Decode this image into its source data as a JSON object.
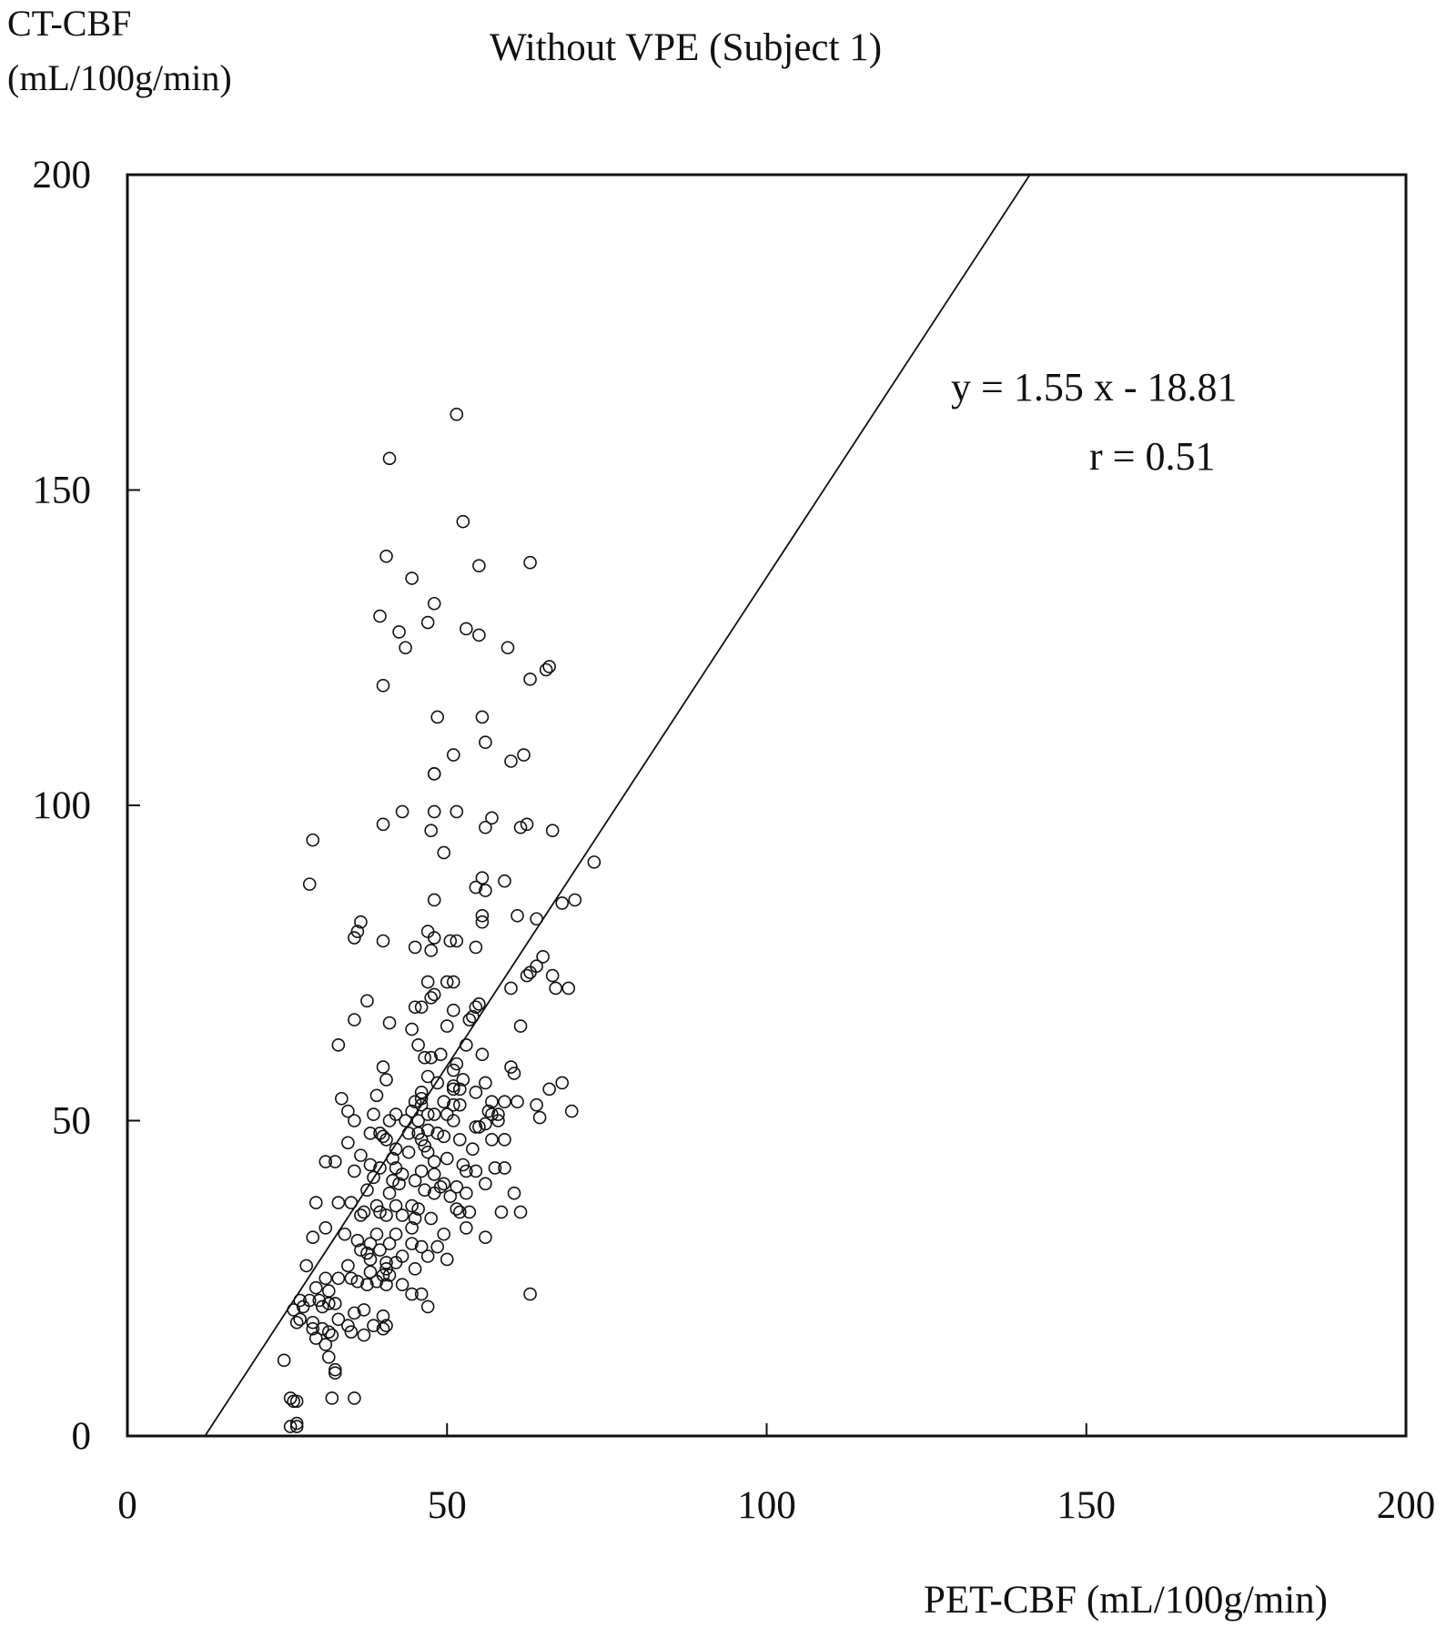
{
  "chart_data": {
    "type": "scatter",
    "title": "Without VPE (Subject 1)",
    "ylabel_line1": "CT-CBF",
    "ylabel_line2": "(mL/100g/min)",
    "xlabel": "PET-CBF (mL/100g/min)",
    "xlim": [
      0,
      200
    ],
    "ylim": [
      0,
      200
    ],
    "xticks": [
      0,
      50,
      100,
      150,
      200
    ],
    "yticks": [
      0,
      50,
      100,
      150,
      200
    ],
    "grid": false,
    "regression": {
      "slope": 1.55,
      "intercept": -18.81
    },
    "annotations": [
      "y = 1.55 x - 18.81",
      "r = 0.51"
    ],
    "points": [
      [
        51.5,
        162
      ],
      [
        41,
        155
      ],
      [
        52.5,
        145
      ],
      [
        40.5,
        139.5
      ],
      [
        63,
        138.5
      ],
      [
        55,
        138
      ],
      [
        44.5,
        136
      ],
      [
        48,
        132
      ],
      [
        39.5,
        130
      ],
      [
        47,
        129
      ],
      [
        53,
        128
      ],
      [
        42.5,
        127.5
      ],
      [
        55,
        127
      ],
      [
        43.5,
        125
      ],
      [
        59.5,
        125
      ],
      [
        66,
        122
      ],
      [
        65.5,
        121.5
      ],
      [
        63,
        120
      ],
      [
        40,
        119
      ],
      [
        48.5,
        114
      ],
      [
        55.5,
        114
      ],
      [
        56,
        110
      ],
      [
        62,
        108
      ],
      [
        51,
        108
      ],
      [
        60,
        107
      ],
      [
        48,
        105
      ],
      [
        48,
        105
      ],
      [
        57,
        98
      ],
      [
        40,
        97
      ],
      [
        43,
        99
      ],
      [
        48,
        99
      ],
      [
        51.5,
        99
      ],
      [
        62.5,
        97
      ],
      [
        61.5,
        96.5
      ],
      [
        56,
        96.5
      ],
      [
        66.5,
        96
      ],
      [
        47.5,
        96
      ],
      [
        29,
        94.5
      ],
      [
        49.5,
        92.5
      ],
      [
        73,
        91
      ],
      [
        55.5,
        88.5
      ],
      [
        59,
        88
      ],
      [
        28.5,
        87.5
      ],
      [
        54.5,
        87
      ],
      [
        56,
        86.5
      ],
      [
        70,
        85
      ],
      [
        68,
        84.5
      ],
      [
        48,
        85
      ],
      [
        55.5,
        82.5
      ],
      [
        55.5,
        81.5
      ],
      [
        61,
        82.5
      ],
      [
        64,
        82
      ],
      [
        36.5,
        81.5
      ],
      [
        36,
        80
      ],
      [
        47,
        80
      ],
      [
        35.5,
        79
      ],
      [
        48,
        79
      ],
      [
        40,
        78.5
      ],
      [
        50.5,
        78.5
      ],
      [
        51.5,
        78.5
      ],
      [
        54.5,
        77.5
      ],
      [
        45,
        77.5
      ],
      [
        47.5,
        77
      ],
      [
        65,
        76
      ],
      [
        64,
        74.5
      ],
      [
        63,
        73.5
      ],
      [
        62.5,
        73
      ],
      [
        66.5,
        73
      ],
      [
        47,
        72
      ],
      [
        50,
        72
      ],
      [
        51,
        72
      ],
      [
        60,
        71
      ],
      [
        67,
        71
      ],
      [
        69,
        71
      ],
      [
        48,
        70
      ],
      [
        47.5,
        69.5
      ],
      [
        37.5,
        69
      ],
      [
        55,
        68.5
      ],
      [
        54.5,
        68
      ],
      [
        46,
        68
      ],
      [
        45,
        68
      ],
      [
        51,
        67.5
      ],
      [
        54,
        66.5
      ],
      [
        53.5,
        66
      ],
      [
        35.5,
        66
      ],
      [
        41,
        65.5
      ],
      [
        61.5,
        65
      ],
      [
        50,
        65
      ],
      [
        44.5,
        64.5
      ],
      [
        33,
        62
      ],
      [
        45.5,
        62
      ],
      [
        53,
        62
      ],
      [
        49,
        60.5
      ],
      [
        46.5,
        60
      ],
      [
        47.5,
        60
      ],
      [
        55.5,
        60.5
      ],
      [
        51.5,
        59
      ],
      [
        40,
        58.5
      ],
      [
        60,
        58.5
      ],
      [
        60.5,
        57.5
      ],
      [
        51,
        58
      ],
      [
        47,
        57
      ],
      [
        52.5,
        56.5
      ],
      [
        40.5,
        56.5
      ],
      [
        68,
        56
      ],
      [
        48.5,
        56
      ],
      [
        51,
        55.5
      ],
      [
        51,
        55
      ],
      [
        56,
        56
      ],
      [
        66,
        55
      ],
      [
        46,
        54.5
      ],
      [
        52,
        55
      ],
      [
        54.5,
        54.5
      ],
      [
        39,
        54
      ],
      [
        46,
        53.5
      ],
      [
        33.5,
        53.5
      ],
      [
        49.5,
        53
      ],
      [
        45,
        53
      ],
      [
        46,
        52.5
      ],
      [
        52,
        52.5
      ],
      [
        51,
        52.5
      ],
      [
        57,
        53
      ],
      [
        61,
        53
      ],
      [
        59,
        53
      ],
      [
        64,
        52.5
      ],
      [
        44.5,
        51.5
      ],
      [
        34.5,
        51.5
      ],
      [
        38.5,
        51
      ],
      [
        42,
        51
      ],
      [
        50,
        51
      ],
      [
        58,
        51
      ],
      [
        57,
        51
      ],
      [
        47,
        51
      ],
      [
        48,
        51
      ],
      [
        69.5,
        51.5
      ],
      [
        56.5,
        51.5
      ],
      [
        35.5,
        50
      ],
      [
        41,
        50
      ],
      [
        43.5,
        50
      ],
      [
        45.5,
        50
      ],
      [
        51,
        50
      ],
      [
        56,
        49.5
      ],
      [
        64.5,
        50.5
      ],
      [
        58,
        50
      ],
      [
        54.5,
        49
      ],
      [
        55,
        49
      ],
      [
        47,
        48.5
      ],
      [
        48.5,
        48
      ],
      [
        45.5,
        48
      ],
      [
        39.5,
        48
      ],
      [
        40,
        47.5
      ],
      [
        38,
        48
      ],
      [
        44,
        48
      ],
      [
        49.5,
        47.5
      ],
      [
        46,
        47
      ],
      [
        59,
        47
      ],
      [
        57,
        47
      ],
      [
        52,
        47
      ],
      [
        40.5,
        47
      ],
      [
        34.5,
        46.5
      ],
      [
        46.5,
        46
      ],
      [
        42,
        45.5
      ],
      [
        54,
        45.5
      ],
      [
        47,
        45
      ],
      [
        44,
        45
      ],
      [
        50,
        44
      ],
      [
        36.5,
        44.5
      ],
      [
        41.5,
        44
      ],
      [
        48,
        43.5
      ],
      [
        31,
        43.5
      ],
      [
        32.5,
        43.5
      ],
      [
        38,
        43
      ],
      [
        39.5,
        42.5
      ],
      [
        42,
        42.5
      ],
      [
        52.5,
        43
      ],
      [
        57.5,
        42.5
      ],
      [
        59,
        42.5
      ],
      [
        53,
        42
      ],
      [
        54.5,
        42
      ],
      [
        35.5,
        42
      ],
      [
        46,
        42
      ],
      [
        43,
        41.5
      ],
      [
        48,
        41.5
      ],
      [
        38.5,
        41
      ],
      [
        41.5,
        40.5
      ],
      [
        45,
        40.5
      ],
      [
        49.5,
        40
      ],
      [
        42.5,
        40
      ],
      [
        49,
        39.5
      ],
      [
        51.5,
        39.5
      ],
      [
        56,
        40
      ],
      [
        53,
        38.5
      ],
      [
        37.5,
        39
      ],
      [
        46.5,
        39
      ],
      [
        41,
        38.5
      ],
      [
        48,
        38.5
      ],
      [
        60.5,
        38.5
      ],
      [
        50.5,
        38
      ],
      [
        33,
        37
      ],
      [
        29.5,
        37
      ],
      [
        35,
        37
      ],
      [
        39,
        36.5
      ],
      [
        42,
        36.5
      ],
      [
        44.5,
        36.5
      ],
      [
        45.5,
        36
      ],
      [
        51.5,
        36
      ],
      [
        52,
        35.5
      ],
      [
        37,
        35.5
      ],
      [
        39.5,
        35.5
      ],
      [
        53.5,
        35.5
      ],
      [
        58.5,
        35.5
      ],
      [
        61.5,
        35.5
      ],
      [
        36.5,
        35
      ],
      [
        40.5,
        35
      ],
      [
        43,
        35
      ],
      [
        45,
        34.5
      ],
      [
        47.5,
        34.5
      ],
      [
        44.5,
        33
      ],
      [
        53,
        33
      ],
      [
        31,
        33
      ],
      [
        34,
        32
      ],
      [
        39,
        32
      ],
      [
        42,
        32
      ],
      [
        49.5,
        32
      ],
      [
        56,
        31.5
      ],
      [
        29,
        31.5
      ],
      [
        36,
        31
      ],
      [
        38,
        30.5
      ],
      [
        41,
        30.5
      ],
      [
        44.5,
        30.5
      ],
      [
        46,
        30
      ],
      [
        48.5,
        30
      ],
      [
        36.5,
        29.5
      ],
      [
        39.5,
        29.5
      ],
      [
        37.5,
        29
      ],
      [
        43,
        28.5
      ],
      [
        47,
        28.5
      ],
      [
        50,
        28
      ],
      [
        38,
        28
      ],
      [
        40.5,
        27.5
      ],
      [
        42,
        27.5
      ],
      [
        28,
        27
      ],
      [
        34.5,
        27
      ],
      [
        40.5,
        26.5
      ],
      [
        45,
        26.5
      ],
      [
        38,
        26
      ],
      [
        40,
        25.5
      ],
      [
        41,
        25.5
      ],
      [
        31,
        25
      ],
      [
        33,
        25
      ],
      [
        35,
        25
      ],
      [
        36,
        24.5
      ],
      [
        39,
        24.5
      ],
      [
        37.5,
        24
      ],
      [
        40.5,
        24
      ],
      [
        43,
        24
      ],
      [
        29.5,
        23.5
      ],
      [
        31.5,
        23
      ],
      [
        46,
        22.5
      ],
      [
        44.5,
        22.5
      ],
      [
        63,
        22.5
      ],
      [
        27,
        21.5
      ],
      [
        28.5,
        21.5
      ],
      [
        30,
        21.5
      ],
      [
        31.5,
        21
      ],
      [
        32.5,
        21
      ],
      [
        30.5,
        20.5
      ],
      [
        27.5,
        20.5
      ],
      [
        47,
        20.5
      ],
      [
        37,
        20
      ],
      [
        26,
        20
      ],
      [
        35.5,
        19.5
      ],
      [
        40,
        19
      ],
      [
        33,
        18.5
      ],
      [
        26.5,
        18
      ],
      [
        27,
        18.5
      ],
      [
        29,
        18
      ],
      [
        34.5,
        17.5
      ],
      [
        38.5,
        17.5
      ],
      [
        40.5,
        17.5
      ],
      [
        40,
        17
      ],
      [
        29,
        17
      ],
      [
        30.5,
        17
      ],
      [
        31.5,
        16.5
      ],
      [
        35,
        16.5
      ],
      [
        37,
        16
      ],
      [
        32,
        16
      ],
      [
        29.5,
        15.5
      ],
      [
        31,
        14.5
      ],
      [
        31.5,
        12.5
      ],
      [
        24.5,
        12
      ],
      [
        32.5,
        10.5
      ],
      [
        32.5,
        10
      ],
      [
        35.5,
        6
      ],
      [
        32,
        6
      ],
      [
        25.5,
        6
      ],
      [
        26,
        5.5
      ],
      [
        26.5,
        5.5
      ],
      [
        25.5,
        1.5
      ],
      [
        26.5,
        2
      ],
      [
        26.5,
        1.5
      ]
    ]
  }
}
